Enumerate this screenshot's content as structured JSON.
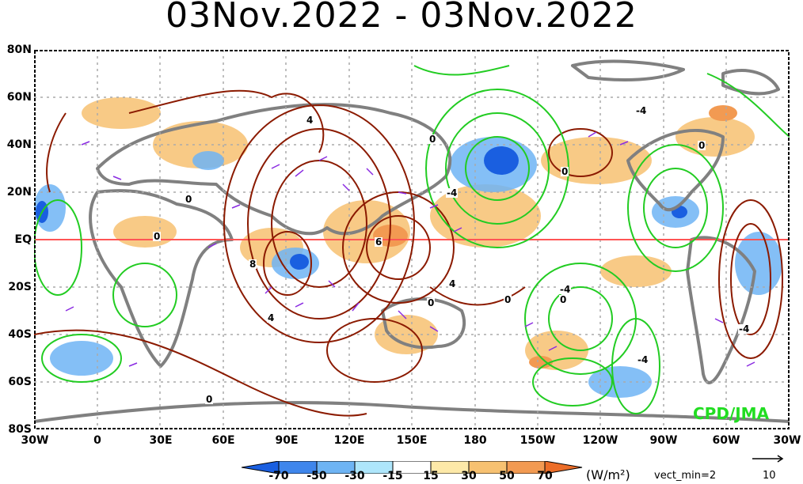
{
  "title": "03Nov.2022 - 03Nov.2022",
  "y_labels": [
    "80N",
    "60N",
    "40N",
    "20N",
    "EQ",
    "20S",
    "40S",
    "60S",
    "80S"
  ],
  "x_labels": [
    "30W",
    "0",
    "30E",
    "60E",
    "90E",
    "120E",
    "150E",
    "180",
    "150W",
    "120W",
    "90W",
    "60W",
    "30W"
  ],
  "colorbar": {
    "ticks": [
      "-70",
      "-50",
      "-30",
      "-15",
      "15",
      "30",
      "50",
      "70"
    ],
    "units": "(W/m²)",
    "colors": [
      "#1a5fe0",
      "#3f86ec",
      "#6eb4f4",
      "#aee6fb",
      "#ffffff",
      "#fde9a8",
      "#f7c171",
      "#f29a52",
      "#ec6d28"
    ]
  },
  "vect_min": "vect_min=2",
  "ref_vector": "10",
  "credit": "CPD/JMA",
  "contour_labels": [
    "0",
    "4",
    "0",
    "-4",
    "0",
    "-4",
    "0",
    "0",
    "8",
    "6",
    "4",
    "-4",
    "0",
    "-4",
    "0",
    "4",
    "-4",
    "0",
    "0"
  ],
  "colors": {
    "positive_contour": "#8b1a00",
    "negative_contour": "#22cc22",
    "vector": "#8a2be2",
    "coast": "#808080",
    "equator": "#ff5555"
  }
}
